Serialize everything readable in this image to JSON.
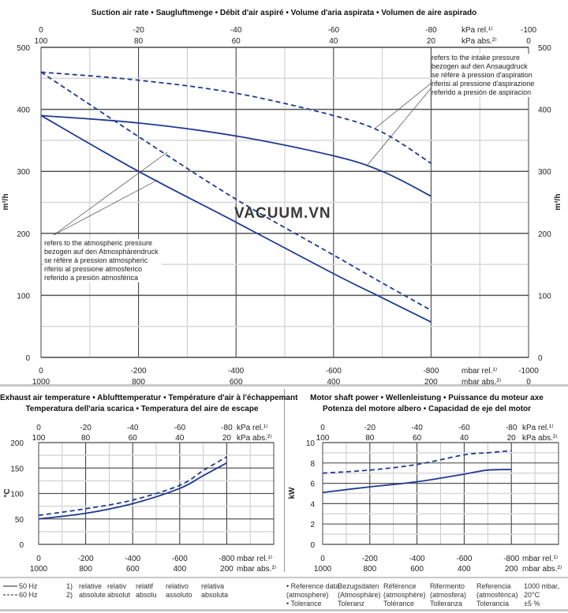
{
  "main": {
    "title": "Suction air rate  •  Saugluftmenge  •  Débit d'air aspiré  •  Volume d'aria aspirata  •  Volumen de aire aspirado",
    "note_intake": [
      "refers to the intake pressure",
      "bezogen auf den Ansaugdruck",
      "se réfère à pression d'aspiration",
      "riferisi al pressione d'aspirazione",
      "referido a presión de aspiracion"
    ],
    "note_atm": [
      "refers to the atmospheric pressure",
      "bezogen auf den Atmosphärendruck",
      "se réfère à pression atmospheric",
      "riferisi al pressione atmosferico",
      "referido a presión atmosférica"
    ],
    "watermark": "VACUUM.VN"
  },
  "temp": {
    "title_line1": "Exhaust air temperature  •  Ablufttemperatur  •  Température d'air à l'échappemant",
    "title_line2": "Temperatura dell'aria scarica  •  Temperatura del aire de escape"
  },
  "power": {
    "title_line1": "Motor shaft power  •  Wellenleistung  •  Puissance du moteur axe",
    "title_line2": "Potenza del motore albero  •  Capacidad de eje del motor"
  },
  "chart_data": [
    {
      "type": "line",
      "title": "Suction air rate • Saugluftmenge • Débit d'air aspiré • Volume d'aria aspirata • Volumen de aire aspirado",
      "ylabel": "m³/h",
      "xlabel_rel": "mbar rel.¹⁾",
      "xlabel_abs": "mbar abs.²⁾",
      "x2label_rel": "kPa rel.¹⁾",
      "x2label_abs": "kPa abs.²⁾",
      "xlim": [
        0,
        -1000
      ],
      "ylim": [
        0,
        500
      ],
      "x_ticks_rel": [
        "0",
        "-200",
        "-400",
        "-600",
        "-800",
        "-1000"
      ],
      "x_ticks_abs": [
        "1000",
        "800",
        "600",
        "400",
        "200",
        "0"
      ],
      "x2_ticks_rel": [
        "0",
        "-20",
        "-40",
        "-60",
        "-80",
        "-100"
      ],
      "x2_ticks_abs": [
        "100",
        "80",
        "60",
        "40",
        "20",
        "0"
      ],
      "y_ticks": [
        "0",
        "100",
        "200",
        "300",
        "400",
        "500"
      ],
      "grid": true,
      "x": [
        0,
        -200,
        -400,
        -600,
        -700,
        -800
      ],
      "series": [
        {
          "name": "50 Hz",
          "reference": "intake",
          "style": "solid",
          "values": [
            390,
            378,
            357,
            325,
            300,
            260
          ]
        },
        {
          "name": "60 Hz",
          "reference": "intake",
          "style": "dashed",
          "values": [
            460,
            447,
            426,
            390,
            363,
            313
          ]
        },
        {
          "name": "50 Hz",
          "reference": "atmospheric",
          "style": "solid",
          "values": [
            390,
            300,
            218,
            135,
            96,
            57
          ]
        },
        {
          "name": "60 Hz",
          "reference": "atmospheric",
          "style": "dashed",
          "values": [
            460,
            356,
            255,
            165,
            120,
            76
          ]
        }
      ]
    },
    {
      "type": "line",
      "title": "Exhaust air temperature",
      "ylabel": "°C",
      "xlabel_rel": "mbar rel.¹⁾",
      "xlabel_abs": "mbar abs.²⁾",
      "x2label_rel": "kPa rel.¹⁾",
      "x2label_abs": "kPa abs.²⁾",
      "xlim": [
        0,
        -1000
      ],
      "ylim": [
        0,
        200
      ],
      "x_ticks_rel": [
        "0",
        "-200",
        "-400",
        "-600",
        "-800"
      ],
      "x_ticks_abs": [
        "1000",
        "800",
        "600",
        "400",
        "200"
      ],
      "x2_ticks_rel": [
        "0",
        "-20",
        "-40",
        "-60",
        "-80"
      ],
      "x2_ticks_abs": [
        "100",
        "80",
        "60",
        "40",
        "20"
      ],
      "y_ticks": [
        "0",
        "50",
        "100",
        "150",
        "200"
      ],
      "grid": true,
      "x": [
        0,
        -200,
        -400,
        -600,
        -700,
        -800
      ],
      "series": [
        {
          "name": "50 Hz",
          "style": "solid",
          "values": [
            50,
            61,
            80,
            110,
            135,
            160
          ]
        },
        {
          "name": "60 Hz",
          "style": "dashed",
          "values": [
            57,
            70,
            87,
            116,
            145,
            172
          ]
        }
      ]
    },
    {
      "type": "line",
      "title": "Motor shaft power",
      "ylabel": "kW",
      "xlabel_rel": "mbar rel.¹⁾",
      "xlabel_abs": "mbar abs.²⁾",
      "x2label_rel": "kPa rel.¹⁾",
      "x2label_abs": "kPa abs.²⁾",
      "xlim": [
        0,
        -1000
      ],
      "ylim": [
        0,
        10
      ],
      "x_ticks_rel": [
        "0",
        "-200",
        "-400",
        "-600",
        "-800"
      ],
      "x_ticks_abs": [
        "1000",
        "800",
        "600",
        "400",
        "200"
      ],
      "x2_ticks_rel": [
        "0",
        "-20",
        "-40",
        "-60",
        "-80"
      ],
      "x2_ticks_abs": [
        "100",
        "80",
        "60",
        "40",
        "20"
      ],
      "y_ticks": [
        "0",
        "2",
        "4",
        "6",
        "8",
        "10"
      ],
      "grid": true,
      "x": [
        0,
        -200,
        -400,
        -600,
        -700,
        -800
      ],
      "series": [
        {
          "name": "50 Hz",
          "style": "solid",
          "values": [
            5.1,
            5.65,
            6.15,
            6.9,
            7.3,
            7.35
          ]
        },
        {
          "name": "60 Hz",
          "style": "dashed",
          "values": [
            7.0,
            7.3,
            7.85,
            8.8,
            9.0,
            9.2
          ]
        }
      ]
    }
  ],
  "legend": {
    "hz50": "50 Hz",
    "hz60": "60 Hz",
    "fn_nums": [
      "1)",
      "2)"
    ],
    "fn_rel": [
      "relative",
      "relativ",
      "relatif",
      "relativo",
      "relativa"
    ],
    "fn_abs": [
      "absolute",
      "absolut",
      "absolu",
      "assoluto",
      "absoluta"
    ],
    "ref_cols": [
      [
        "• Reference data",
        "(atmosphere)",
        "• Tolerance"
      ],
      [
        "Bezugsdaten",
        "(Atmosphäre)",
        "Toleranz"
      ],
      [
        "Référence",
        "(atmosphère)",
        "Tolérance"
      ],
      [
        "Rifermento",
        "(atmosfera)",
        "Tolleranza"
      ],
      [
        "Referencia",
        "(atmosférica)",
        "Tolerancia"
      ],
      [
        "1000 mbar,",
        "20°C",
        "±5 %"
      ]
    ]
  },
  "colors": {
    "curve": "#1f3a93",
    "grid_major": "#555555",
    "grid_minor": "#cccccc"
  }
}
